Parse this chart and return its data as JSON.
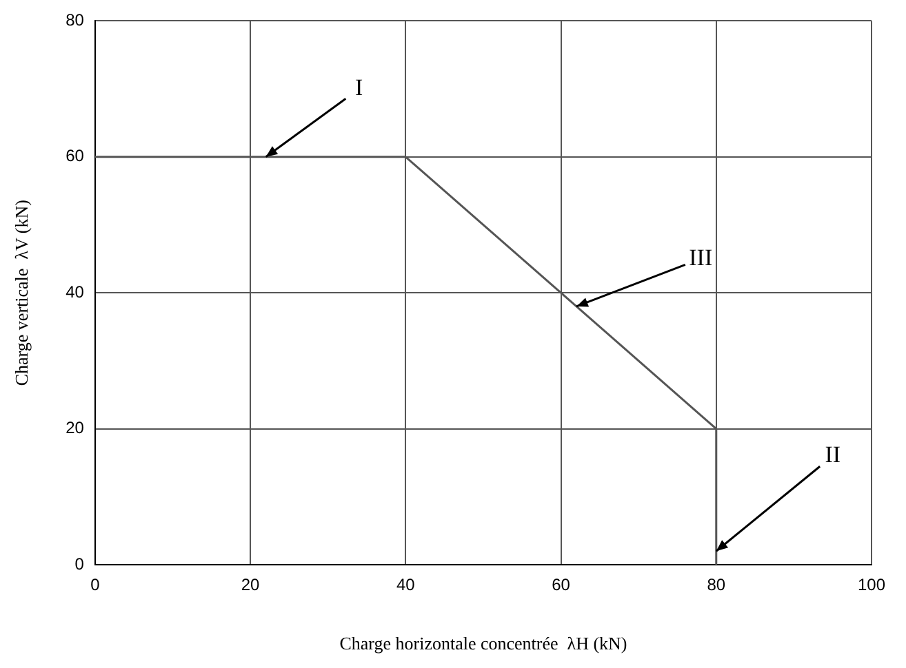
{
  "chart_data": {
    "type": "line",
    "xlabel": "Charge horizontale concentrée  λH (kN)",
    "ylabel": "Charge verticale  λV (kN)",
    "x": [
      0,
      40,
      80,
      80
    ],
    "series": [
      {
        "color": "#555555",
        "values": [
          60,
          60,
          20,
          0
        ]
      }
    ],
    "xlim": [
      0,
      100
    ],
    "xticks": [
      0,
      20,
      40,
      60,
      80,
      100
    ],
    "ylim": [
      0,
      80
    ],
    "yticks": [
      0,
      20,
      40,
      60,
      80
    ],
    "grid": true,
    "legend": false,
    "marker": "none",
    "line_style": "solid",
    "annotations": [
      {
        "text": "I",
        "x": 22,
        "y": 60
      },
      {
        "text": "III",
        "x": 62,
        "y": 38
      },
      {
        "text": "II",
        "x": 80,
        "y": 2
      }
    ]
  }
}
